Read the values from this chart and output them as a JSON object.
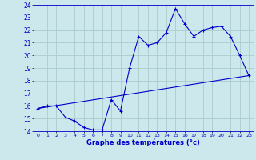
{
  "title": "Graphe des températures (°c)",
  "bg_color": "#cce8ec",
  "plot_bg": "#cce8ec",
  "grid_color": "#aacccc",
  "line_color": "#0000cc",
  "x_hours": [
    0,
    1,
    2,
    3,
    4,
    5,
    6,
    7,
    8,
    9,
    10,
    11,
    12,
    13,
    14,
    15,
    16,
    17,
    18,
    19,
    20,
    21,
    22,
    23
  ],
  "temps": [
    15.8,
    16.0,
    16.0,
    15.1,
    14.8,
    14.3,
    14.1,
    14.1,
    16.5,
    15.6,
    19.0,
    21.5,
    20.8,
    21.0,
    21.8,
    23.7,
    22.5,
    21.5,
    22.0,
    22.2,
    22.3,
    21.5,
    20.0,
    18.4
  ],
  "trend_x": [
    0,
    23
  ],
  "trend_y": [
    15.8,
    18.4
  ],
  "ylim": [
    14,
    24
  ],
  "xlim": [
    -0.5,
    23.5
  ],
  "yticks": [
    14,
    15,
    16,
    17,
    18,
    19,
    20,
    21,
    22,
    23,
    24
  ],
  "xticks": [
    0,
    1,
    2,
    3,
    4,
    5,
    6,
    7,
    8,
    9,
    10,
    11,
    12,
    13,
    14,
    15,
    16,
    17,
    18,
    19,
    20,
    21,
    22,
    23
  ],
  "xlabel_fontsize": 6.0,
  "ytick_fontsize": 5.5,
  "xtick_fontsize": 4.5
}
